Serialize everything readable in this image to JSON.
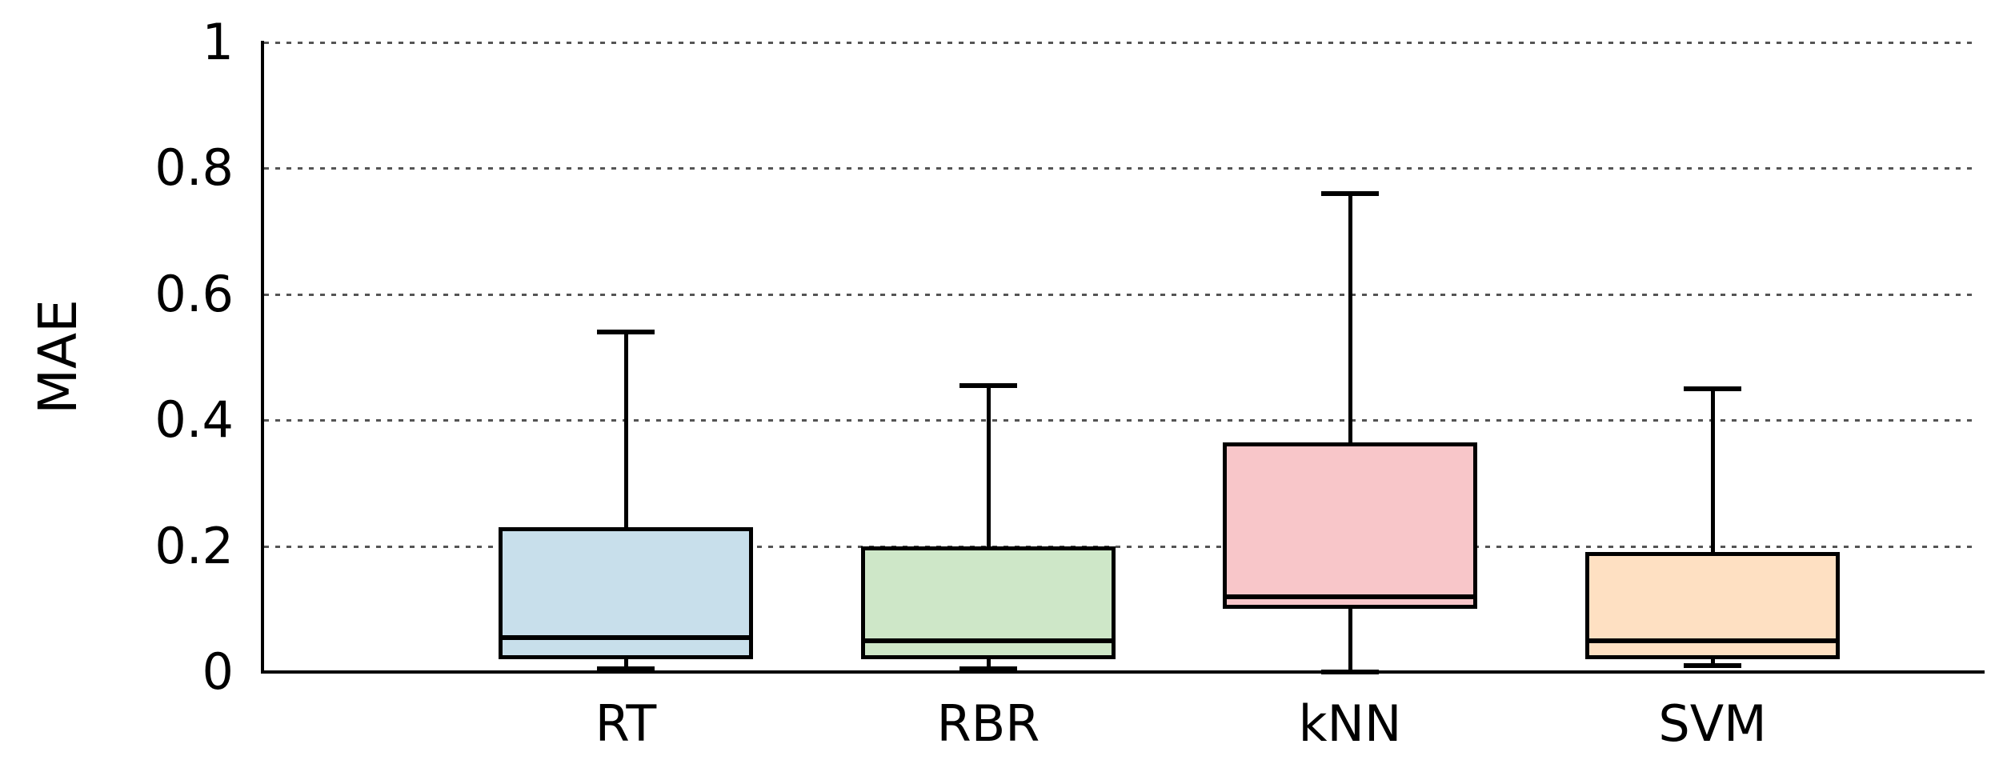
{
  "chart_data": {
    "type": "box",
    "title": "",
    "xlabel": "",
    "ylabel": "MAE",
    "categories": [
      "RT",
      "RBR",
      "kNN",
      "SVM"
    ],
    "ylim": [
      0,
      1
    ],
    "yticks": [
      0,
      0.2,
      0.4,
      0.6,
      0.8,
      1
    ],
    "ytick_labels": [
      "0",
      "0.2",
      "0.4",
      "0.6",
      "0.8",
      "1"
    ],
    "grid": "horizontal dotted lines at each y tick, no vertical grid",
    "legend": "none",
    "series": [
      {
        "name": "RT",
        "whisker_low": 0.005,
        "q1": 0.02,
        "median": 0.055,
        "q3": 0.23,
        "whisker_high": 0.54,
        "fill_color": "#c8dfeb"
      },
      {
        "name": "RBR",
        "whisker_low": 0.005,
        "q1": 0.02,
        "median": 0.05,
        "q3": 0.2,
        "whisker_high": 0.455,
        "fill_color": "#cee7c8"
      },
      {
        "name": "kNN",
        "whisker_low": 0.0,
        "q1": 0.1,
        "median": 0.12,
        "q3": 0.365,
        "whisker_high": 0.76,
        "fill_color": "#f8c6c9"
      },
      {
        "name": "SVM",
        "whisker_low": 0.01,
        "q1": 0.02,
        "median": 0.05,
        "q3": 0.19,
        "whisker_high": 0.45,
        "fill_color": "#fee0c2"
      }
    ],
    "edge_color": "#000000",
    "grid_color": "#555555",
    "background_color": "#ffffff"
  }
}
